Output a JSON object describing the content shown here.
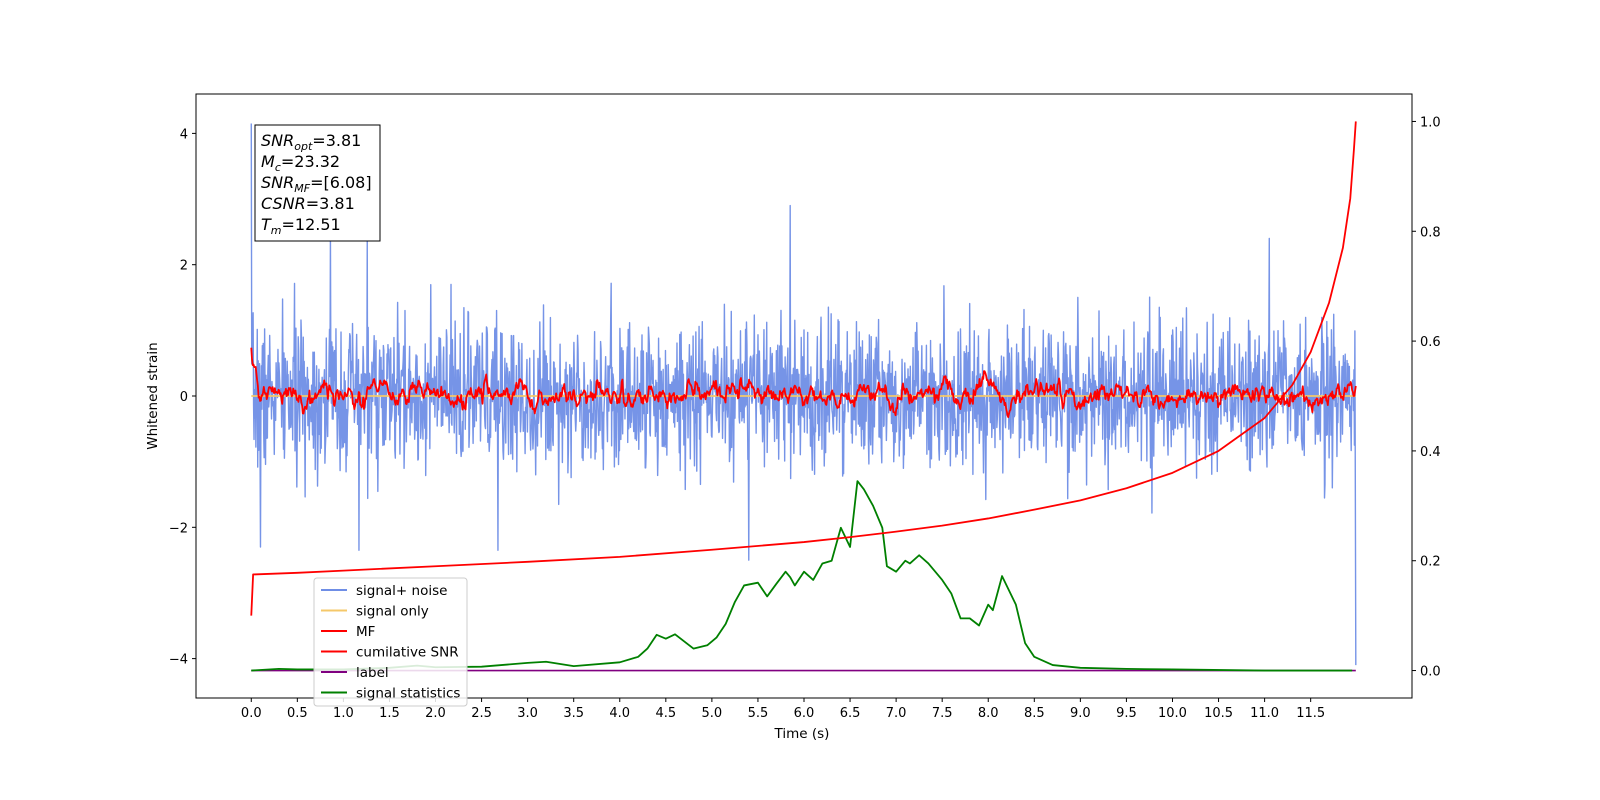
{
  "chart_data": {
    "type": "line",
    "title": "",
    "xlabel": "Time (s)",
    "ylabel": "Whitened strain",
    "xlim": [
      -0.6,
      12.6
    ],
    "ylim": [
      -4.6,
      4.6
    ],
    "y2lim": [
      -0.05,
      1.05
    ],
    "xticks": [
      "0.0",
      "0.5",
      "1.0",
      "1.5",
      "2.0",
      "2.5",
      "3.0",
      "3.5",
      "4.0",
      "4.5",
      "5.0",
      "5.5",
      "6.0",
      "6.5",
      "7.0",
      "7.5",
      "8.0",
      "8.5",
      "9.0",
      "9.5",
      "10.0",
      "10.5",
      "11.0",
      "11.5"
    ],
    "yticks": [
      "4",
      "2",
      "0",
      "−2",
      "−4"
    ],
    "y2ticks": [
      "0.0",
      "0.2",
      "0.4",
      "0.6",
      "0.8",
      "1.0"
    ],
    "grid": false,
    "legend_placement": "lower-left",
    "colors": {
      "signal_noise": "#6f8ee6",
      "signal_only": "#f5c86a",
      "mf": "#ff0000",
      "cumulative_snr": "#ff0000",
      "label": "#800080",
      "signal_statistics": "#008000"
    },
    "annotation": [
      {
        "sym": "SNR",
        "sub": "opt",
        "value": "=3.81"
      },
      {
        "sym": "M",
        "sub": "c",
        "value": "=23.32"
      },
      {
        "sym": "SNR",
        "sub": "MF",
        "value": "=[6.08]"
      },
      {
        "sym": "CSNR",
        "sub": "",
        "value": "=3.81"
      },
      {
        "sym": "T",
        "sub": "m",
        "value": "=12.51"
      }
    ],
    "series": [
      {
        "name": "signal+ noise",
        "axis": "left",
        "style": "noise",
        "amplitude": 0.55,
        "x_range": [
          0.0,
          11.99
        ],
        "spikes": [
          [
            0.0,
            4.15
          ],
          [
            0.86,
            2.45
          ],
          [
            1.26,
            2.4
          ],
          [
            5.85,
            2.9
          ],
          [
            11.99,
            -4.1
          ],
          [
            0.1,
            -2.3
          ],
          [
            1.17,
            -2.35
          ],
          [
            5.4,
            -2.5
          ],
          [
            2.68,
            -2.35
          ],
          [
            11.05,
            2.4
          ]
        ]
      },
      {
        "name": "signal only",
        "axis": "left",
        "style": "flat",
        "x": [
          0.0,
          11.99
        ],
        "y": [
          0.0,
          0.0
        ]
      },
      {
        "name": "MF",
        "axis": "left",
        "style": "mf",
        "baseline": 0.03,
        "amplitude": 0.15,
        "x_range": [
          0.0,
          11.99
        ],
        "start_peak": 0.95
      },
      {
        "name": "cumilative SNR",
        "axis": "right",
        "x": [
          0.0,
          0.02,
          0.5,
          1.0,
          2.0,
          3.0,
          4.0,
          5.0,
          6.0,
          6.5,
          7.0,
          7.5,
          8.0,
          8.5,
          9.0,
          9.5,
          10.0,
          10.5,
          11.0,
          11.3,
          11.5,
          11.7,
          11.85,
          11.93,
          11.97,
          11.99
        ],
        "y": [
          0.1,
          0.175,
          0.178,
          0.182,
          0.19,
          0.198,
          0.207,
          0.22,
          0.234,
          0.243,
          0.253,
          0.264,
          0.277,
          0.293,
          0.31,
          0.332,
          0.36,
          0.4,
          0.46,
          0.52,
          0.58,
          0.67,
          0.77,
          0.86,
          0.95,
          1.0
        ]
      },
      {
        "name": "label",
        "axis": "right",
        "x": [
          0.0,
          11.99
        ],
        "y": [
          0.0,
          0.0
        ]
      },
      {
        "name": "signal statistics",
        "axis": "right",
        "x": [
          0.0,
          0.3,
          0.5,
          1.0,
          1.5,
          1.8,
          2.0,
          2.5,
          3.0,
          3.2,
          3.5,
          4.0,
          4.2,
          4.3,
          4.4,
          4.5,
          4.6,
          4.8,
          4.95,
          5.05,
          5.15,
          5.25,
          5.35,
          5.5,
          5.6,
          5.7,
          5.8,
          5.85,
          5.9,
          6.0,
          6.1,
          6.2,
          6.3,
          6.4,
          6.5,
          6.58,
          6.65,
          6.75,
          6.85,
          6.9,
          7.0,
          7.1,
          7.15,
          7.25,
          7.35,
          7.5,
          7.6,
          7.7,
          7.8,
          7.9,
          8.0,
          8.05,
          8.15,
          8.3,
          8.4,
          8.5,
          8.7,
          9.0,
          9.5,
          10.0,
          11.0,
          11.95
        ],
        "y": [
          0.0,
          0.003,
          0.002,
          0.002,
          0.005,
          0.009,
          0.006,
          0.007,
          0.014,
          0.016,
          0.008,
          0.015,
          0.025,
          0.04,
          0.065,
          0.058,
          0.066,
          0.04,
          0.046,
          0.06,
          0.085,
          0.125,
          0.155,
          0.16,
          0.135,
          0.158,
          0.18,
          0.17,
          0.155,
          0.18,
          0.165,
          0.195,
          0.2,
          0.26,
          0.225,
          0.345,
          0.33,
          0.3,
          0.26,
          0.19,
          0.18,
          0.2,
          0.195,
          0.21,
          0.195,
          0.165,
          0.14,
          0.095,
          0.095,
          0.082,
          0.12,
          0.11,
          0.172,
          0.12,
          0.05,
          0.025,
          0.01,
          0.005,
          0.003,
          0.002,
          0.0,
          0.0
        ]
      }
    ]
  }
}
